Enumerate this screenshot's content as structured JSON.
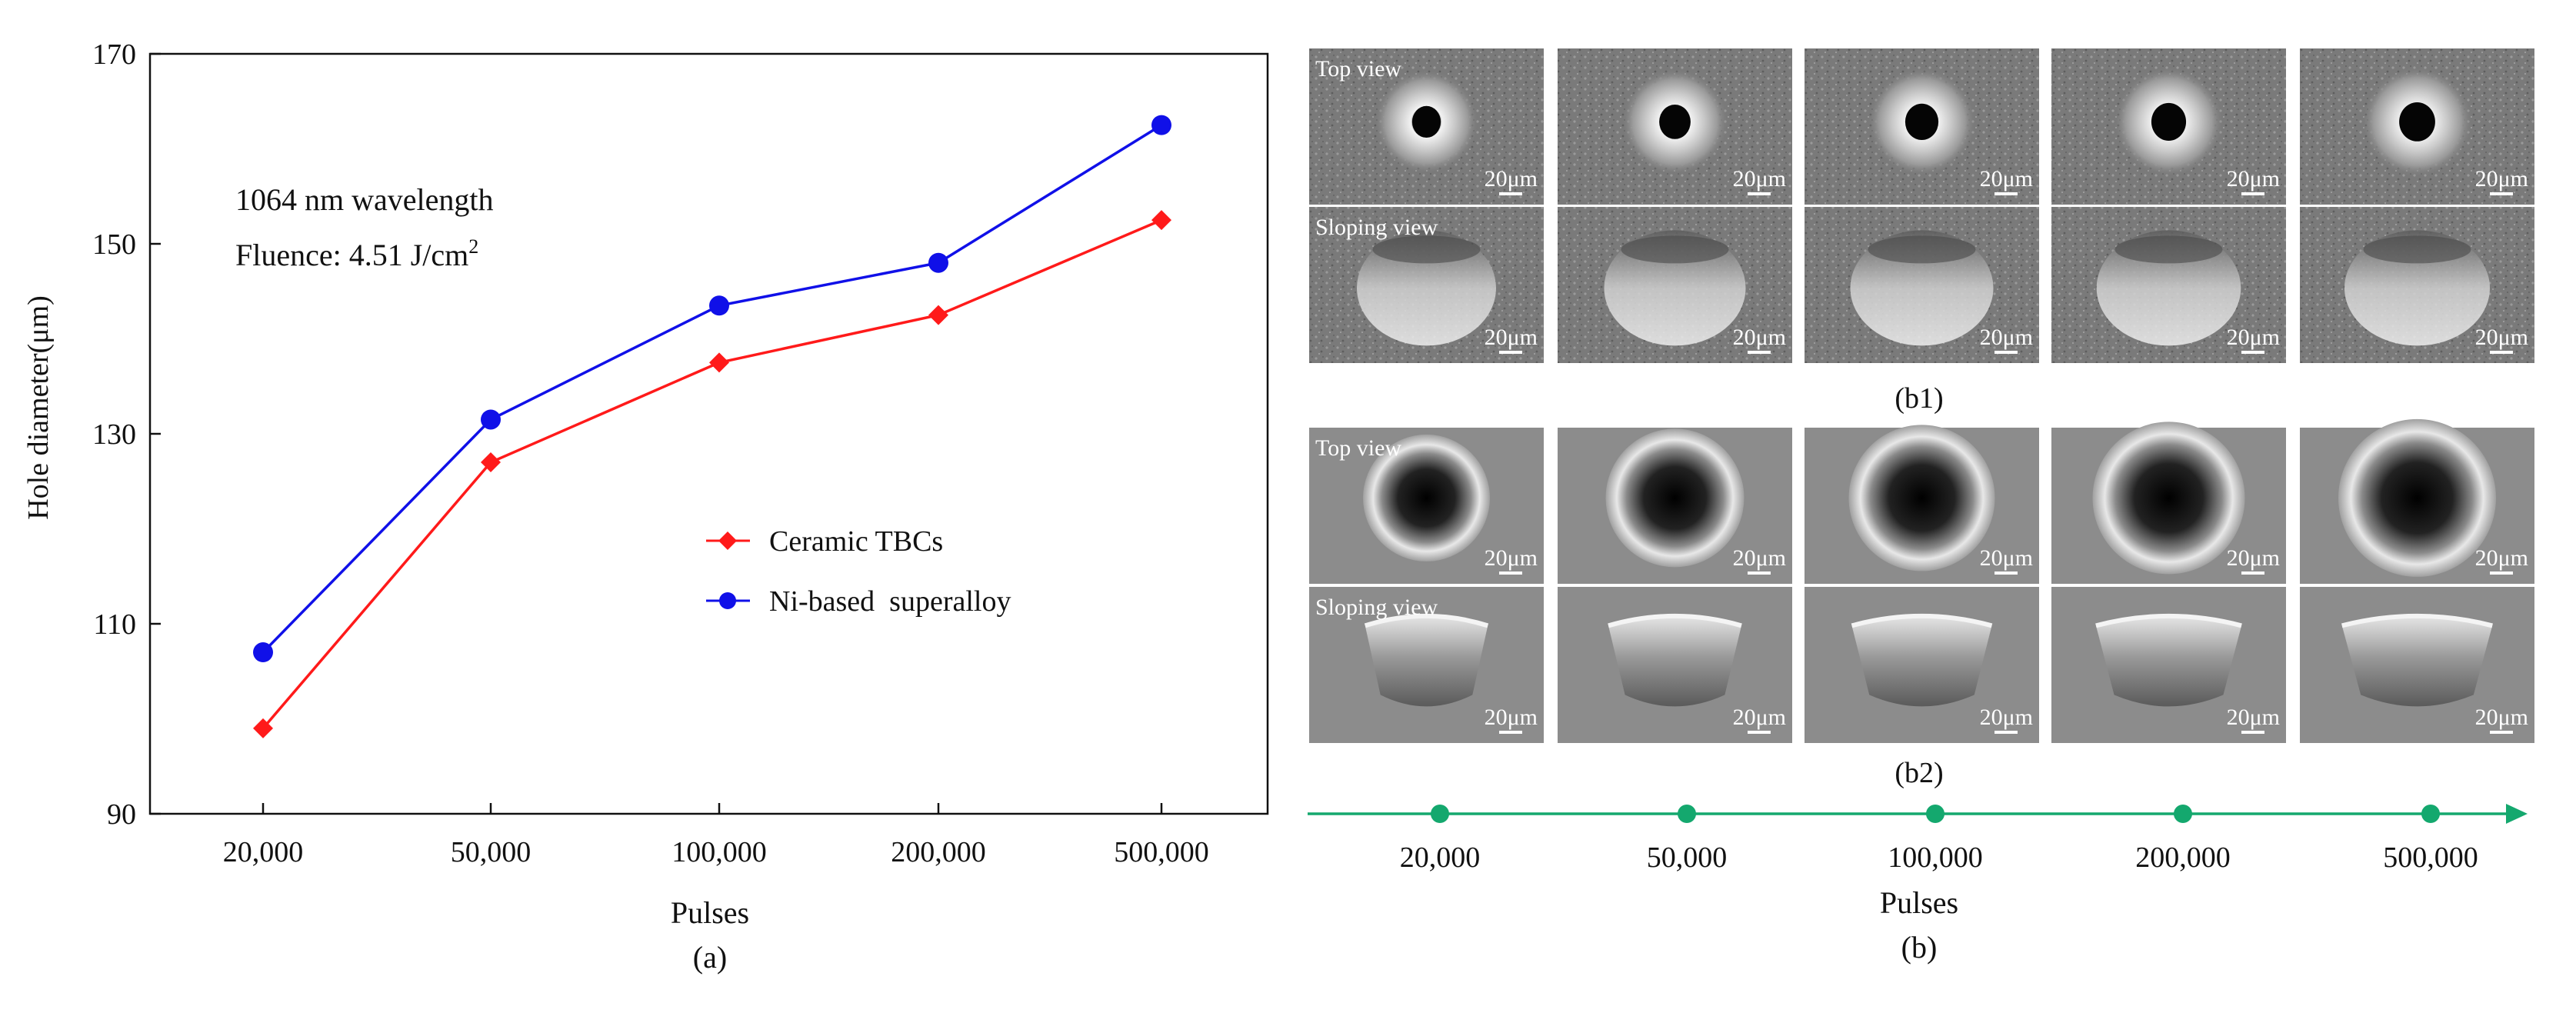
{
  "colors": {
    "ceramic": "#ff1a1a",
    "superalloy": "#1010e8",
    "timeline": "#14a86e",
    "axis": "#111111",
    "sem_b1": "#7b7b7b",
    "sem_b2": "#8c8c8c"
  },
  "chart_data": {
    "type": "line",
    "categories": [
      "20,000",
      "50,000",
      "100,000",
      "200,000",
      "500,000"
    ],
    "series": [
      {
        "name": "Ceramic TBCs",
        "values": [
          99,
          127,
          137.5,
          142.5,
          152.5
        ],
        "marker": "diamond"
      },
      {
        "name": "Ni-based  superalloy",
        "values": [
          107,
          131.5,
          143.5,
          148,
          162.5
        ],
        "marker": "circle"
      }
    ],
    "xlabel": "Pulses",
    "ylabel": "Hole diameter(μm)",
    "ylim": [
      90,
      170
    ],
    "yticks": [
      "90",
      "110",
      "130",
      "150",
      "170"
    ],
    "legend_position": "center-right",
    "annotation_line1": "1064 nm wavelength",
    "annotation_line2_prefix": "Fluence: 4.51 J/cm",
    "annotation_line2_sup": "2",
    "caption": "(a)"
  },
  "panel_b": {
    "row_labels": {
      "top": "Top view",
      "sloping": "Sloping view"
    },
    "scale_label": "20μm",
    "caption_b1": "(b1)",
    "caption_b2": "(b2)",
    "timeline_labels": [
      "20,000",
      "50,000",
      "100,000",
      "200,000",
      "500,000"
    ],
    "xlabel": "Pulses",
    "caption": "(b)"
  }
}
